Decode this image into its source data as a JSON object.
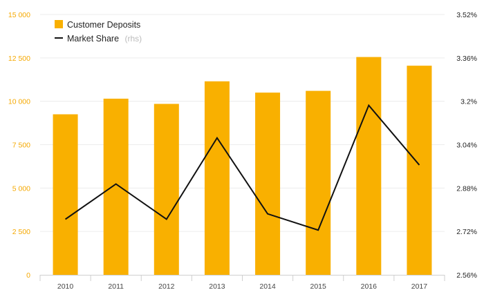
{
  "chart_data": {
    "type": "bar",
    "categories": [
      "2010",
      "2011",
      "2012",
      "2013",
      "2014",
      "2015",
      "2016",
      "2017"
    ],
    "series": [
      {
        "name": "Customer Deposits",
        "type": "bar",
        "axis": "left",
        "color": "#f9b000",
        "values": [
          9250,
          10150,
          9850,
          11150,
          10500,
          10600,
          12550,
          12050
        ]
      },
      {
        "name": "Market Share",
        "type": "line",
        "axis": "right",
        "color": "#111111",
        "values": [
          2.765,
          2.895,
          2.765,
          3.065,
          2.785,
          2.725,
          3.185,
          2.965
        ]
      }
    ],
    "legend": {
      "placement": "top-left",
      "items": [
        {
          "label": "Customer Deposits",
          "sublabel": ""
        },
        {
          "label": "Market Share",
          "sublabel": "(rhs)"
        }
      ]
    },
    "y_left": {
      "lim": [
        0,
        15000
      ],
      "ticks": [
        0,
        2500,
        5000,
        7500,
        10000,
        12500,
        15000
      ],
      "tick_labels": [
        "0",
        "2 500",
        "5 000",
        "7 500",
        "10 000",
        "12 500",
        "15 000"
      ],
      "color": "#f5a800"
    },
    "y_right": {
      "lim": [
        2.56,
        3.52
      ],
      "ticks": [
        2.56,
        2.72,
        2.88,
        3.04,
        3.2,
        3.36,
        3.52
      ],
      "tick_labels": [
        "2.56%",
        "2.72%",
        "2.88%",
        "3.04%",
        "3.2%",
        "3.36%",
        "3.52%"
      ]
    },
    "grid": true
  }
}
